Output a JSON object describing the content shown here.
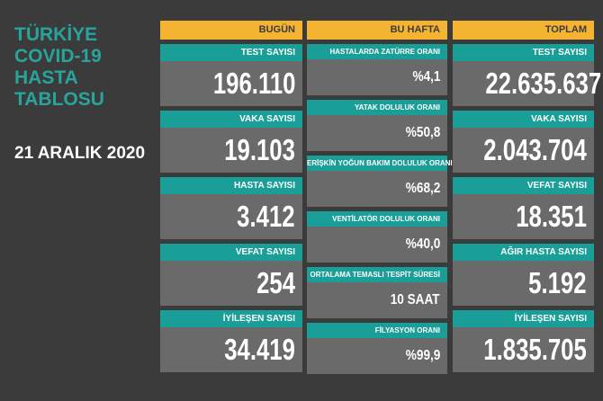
{
  "title": [
    "TÜRKİYE",
    "COVID-19",
    "HASTA",
    "TABLOSU"
  ],
  "date": "21 ARALIK 2020",
  "columns": [
    {
      "header": "BUGÜN",
      "cards": [
        {
          "label": "TEST SAYISI",
          "value": "196.110"
        },
        {
          "label": "VAKA SAYISI",
          "value": "19.103"
        },
        {
          "label": "HASTA SAYISI",
          "value": "3.412"
        },
        {
          "label": "VEFAT SAYISI",
          "value": "254"
        },
        {
          "label": "İYİLEŞEN SAYISI",
          "value": "34.419"
        }
      ]
    },
    {
      "header": "BU HAFTA",
      "cards": [
        {
          "label": "HASTALARDA ZATÜRRE ORANI",
          "value": "%4,1"
        },
        {
          "label": "YATAK DOLULUK ORANI",
          "value": "%50,8"
        },
        {
          "label": "ERİŞKİN YOĞUN BAKIM DOLULUK ORANI",
          "value": "%68,2"
        },
        {
          "label": "VENTİLATÖR DOLULUK ORANI",
          "value": "%40,0"
        },
        {
          "label": "ORTALAMA TEMASLI TESPİT SÜRESİ",
          "value": "10 SAAT"
        },
        {
          "label": "FİLYASYON ORANI",
          "value": "%99,9"
        }
      ]
    },
    {
      "header": "TOPLAM",
      "cards": [
        {
          "label": "TEST SAYISI",
          "value": "22.635.637"
        },
        {
          "label": "VAKA SAYISI",
          "value": "2.043.704"
        },
        {
          "label": "VEFAT SAYISI",
          "value": "18.351"
        },
        {
          "label": "AĞIR HASTA SAYISI",
          "value": "5.192"
        },
        {
          "label": "İYİLEŞEN SAYISI",
          "value": "1.835.705"
        }
      ]
    }
  ]
}
